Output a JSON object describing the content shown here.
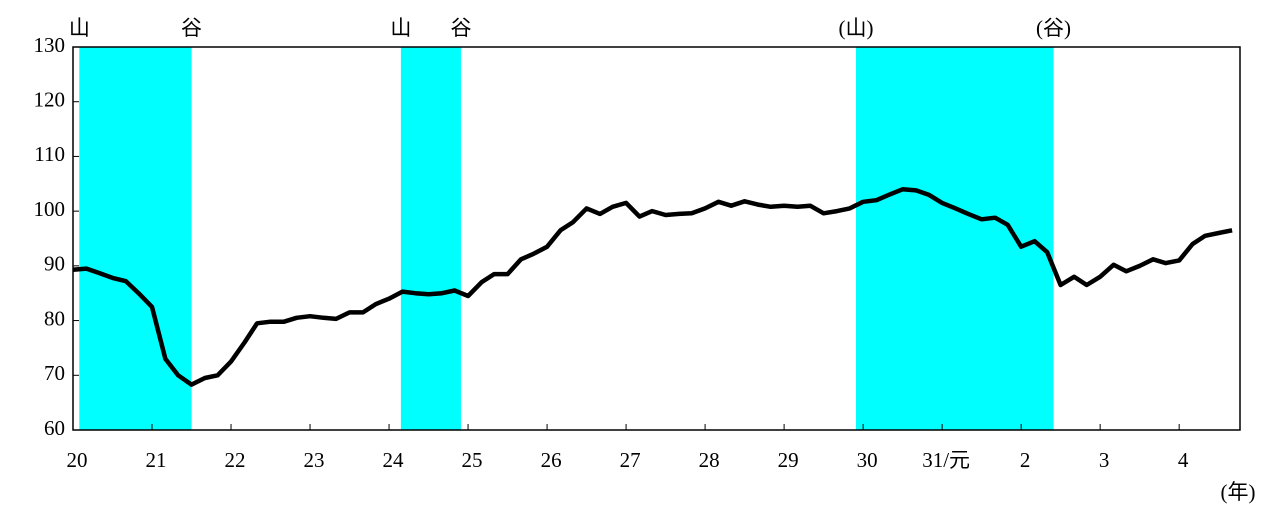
{
  "chart_data": {
    "type": "line",
    "x_label": "(年)",
    "xlim": [
      20,
      34.77
    ],
    "xticks": [
      20,
      21,
      22,
      23,
      24,
      25,
      26,
      27,
      28,
      29,
      30,
      {
        "value": 31,
        "label": "31/元"
      },
      {
        "value": 32,
        "label": "2"
      },
      {
        "value": 33,
        "label": "3"
      },
      {
        "value": 34,
        "label": "4"
      }
    ],
    "ylim": [
      60,
      130
    ],
    "yticks": [
      60,
      70,
      80,
      90,
      100,
      110,
      120,
      130
    ],
    "shaded_periods": [
      {
        "start": 20.08,
        "end": 21.5,
        "start_label": "山",
        "end_label": "谷"
      },
      {
        "start": 24.15,
        "end": 24.91,
        "start_label": "山",
        "end_label": "谷"
      },
      {
        "start": 29.91,
        "end": 32.41,
        "start_label": "(山)",
        "end_label": "(谷)"
      }
    ],
    "shade_color": "#00ffff",
    "series": [
      {
        "color": "#000000",
        "x": [
          20,
          20.17,
          20.33,
          20.5,
          20.67,
          20.83,
          21,
          21.17,
          21.33,
          21.5,
          21.67,
          21.83,
          22,
          22.17,
          22.33,
          22.5,
          22.67,
          22.83,
          23,
          23.17,
          23.33,
          23.5,
          23.67,
          23.83,
          24,
          24.17,
          24.33,
          24.5,
          24.67,
          24.83,
          25,
          25.17,
          25.33,
          25.5,
          25.67,
          25.83,
          26,
          26.17,
          26.33,
          26.5,
          26.67,
          26.83,
          27,
          27.17,
          27.33,
          27.5,
          27.67,
          27.83,
          28,
          28.17,
          28.33,
          28.5,
          28.67,
          28.83,
          29,
          29.17,
          29.33,
          29.5,
          29.67,
          29.83,
          30,
          30.17,
          30.33,
          30.5,
          30.67,
          30.83,
          31,
          31.17,
          31.33,
          31.5,
          31.67,
          31.83,
          32,
          32.17,
          32.33,
          32.5,
          32.67,
          32.83,
          33,
          33.17,
          33.33,
          33.5,
          33.67,
          33.83,
          34,
          34.17,
          34.33,
          34.5,
          34.67
        ],
        "values": [
          89.3,
          89.5,
          88.7,
          87.8,
          87.2,
          85,
          82.5,
          73,
          70,
          68.3,
          69.5,
          70,
          72.5,
          76,
          79.5,
          79.8,
          79.8,
          80.5,
          80.8,
          80.5,
          80.3,
          81.5,
          81.5,
          83,
          84,
          85.3,
          85,
          84.8,
          85,
          85.5,
          84.5,
          87,
          88.5,
          88.5,
          91.2,
          92.2,
          93.5,
          96.5,
          98,
          100.5,
          99.5,
          100.8,
          101.5,
          99,
          100,
          99.3,
          99.5,
          99.6,
          100.5,
          101.7,
          101,
          101.8,
          101.2,
          100.8,
          101,
          100.8,
          101,
          99.6,
          100,
          100.5,
          101.7,
          102,
          103,
          104,
          103.8,
          103,
          101.5,
          100.5,
          99.5,
          98.5,
          98.8,
          97.5,
          93.5,
          94.5,
          92.5,
          86.5,
          88,
          86.5,
          88,
          90.2,
          89,
          90,
          91.2,
          90.5,
          91,
          94,
          95.5,
          96,
          96.5
        ]
      }
    ]
  }
}
